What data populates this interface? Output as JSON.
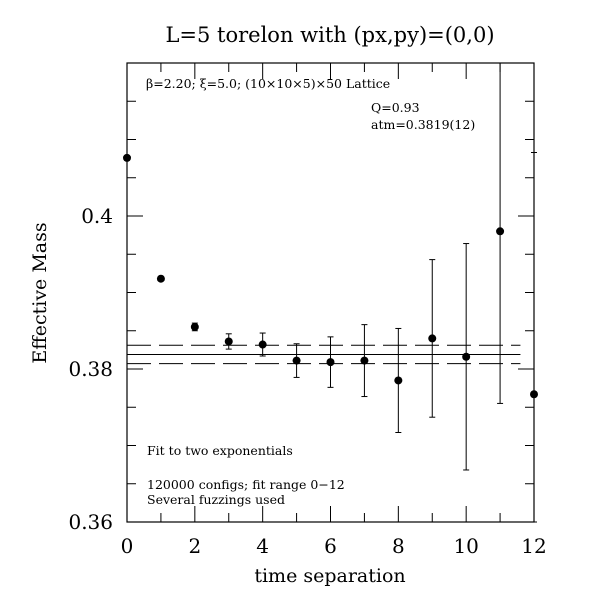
{
  "chart_data": {
    "type": "scatter",
    "title": "L=5 torelon with (px,py)=(0,0)",
    "xlabel": "time separation",
    "ylabel": "Effective Mass",
    "xlim": [
      0,
      12
    ],
    "ylim": [
      0.36,
      0.42
    ],
    "xticks": [
      "0",
      "2",
      "4",
      "6",
      "8",
      "10",
      "12"
    ],
    "yticks": [
      "0.36",
      "0.38",
      "0.4"
    ],
    "annotations": {
      "lattice": "β=2.20; ξ=5.0; (10×10×5)×50 Lattice",
      "q": "Q=0.93",
      "mass": "atm=0.3819(12)",
      "fit": "Fit to two exponentials",
      "configs": "120000 configs; fit range 0−12",
      "fuzzing": "Several fuzzings used"
    },
    "fit": {
      "value": 0.3819,
      "error": 0.0012,
      "x_range": [
        0,
        11.6
      ]
    },
    "points": [
      {
        "x": 0,
        "y": 0.4076,
        "err": 0.0001
      },
      {
        "x": 1,
        "y": 0.3918,
        "err": 0.0002
      },
      {
        "x": 2,
        "y": 0.3855,
        "err": 0.0005
      },
      {
        "x": 3,
        "y": 0.3836,
        "err": 0.001
      },
      {
        "x": 4,
        "y": 0.3832,
        "err": 0.0015
      },
      {
        "x": 5,
        "y": 0.3811,
        "err": 0.0022
      },
      {
        "x": 6,
        "y": 0.3809,
        "err": 0.0033
      },
      {
        "x": 7,
        "y": 0.3811,
        "err": 0.0047
      },
      {
        "x": 8,
        "y": 0.3785,
        "err": 0.0068
      },
      {
        "x": 9,
        "y": 0.384,
        "err": 0.0103
      },
      {
        "x": 10,
        "y": 0.3816,
        "err": 0.0148
      },
      {
        "x": 11,
        "y": 0.398,
        "err": 0.0225
      },
      {
        "x": 12,
        "y": 0.3767,
        "err": 0.0316
      }
    ]
  }
}
